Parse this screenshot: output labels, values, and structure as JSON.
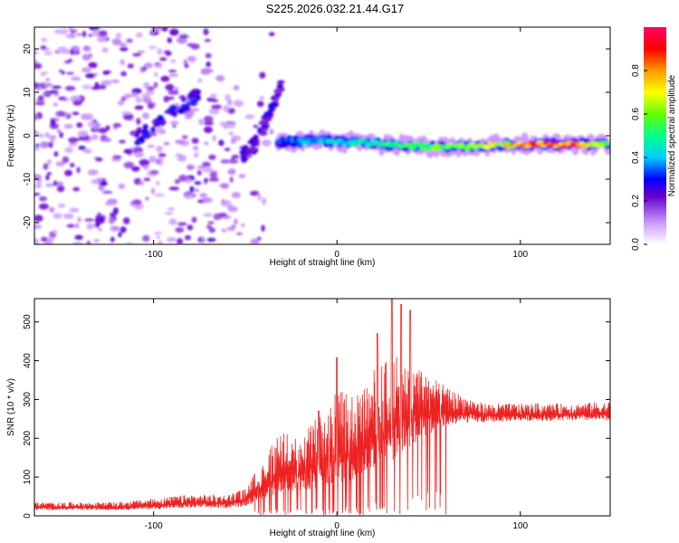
{
  "title": "S225.2026.032.21.44.G17",
  "colors": {
    "line": "#ee2222",
    "axis": "#000000",
    "background": "#ffffff"
  },
  "chart_data": [
    {
      "type": "heatmap",
      "xlabel": "Height of straight line (km)",
      "ylabel": "Frequency (Hz)",
      "xlim": [
        -165,
        149
      ],
      "ylim": [
        -25,
        25
      ],
      "xticks": [
        -100,
        0,
        100
      ],
      "yticks": [
        -20,
        -10,
        0,
        10,
        20
      ],
      "colorbar": {
        "label": "Normalized spectral amplitude",
        "range": [
          0,
          1
        ],
        "ticks": [
          0.0,
          0.2,
          0.4,
          0.6,
          0.8
        ]
      },
      "features": [
        {
          "name": "noise-region",
          "x_range": [
            -165,
            -50
          ],
          "freq_range": [
            -25,
            25
          ],
          "amplitude": 0.1
        },
        {
          "name": "ascending-trace",
          "x": [
            -110,
            -100,
            -90,
            -80,
            -75
          ],
          "freq": [
            -1,
            2,
            5,
            8,
            10
          ],
          "amplitude": 0.3
        },
        {
          "name": "transition-trace",
          "x": [
            -52,
            -45,
            -40,
            -35,
            -30
          ],
          "freq": [
            -5,
            -2,
            2,
            7,
            12
          ],
          "amplitude": 0.25
        },
        {
          "name": "main-signal",
          "x": [
            -30,
            -10,
            10,
            30,
            50,
            70,
            90,
            110,
            130,
            148
          ],
          "freq": [
            -1.5,
            -1,
            -1.5,
            -2,
            -2.5,
            -2.5,
            -2,
            -2,
            -2,
            -2
          ],
          "amplitude": [
            0.35,
            0.45,
            0.5,
            0.55,
            0.6,
            0.65,
            0.75,
            0.95,
            0.95,
            0.6
          ]
        }
      ]
    },
    {
      "type": "line",
      "xlabel": "Height of straight line (km)",
      "ylabel": "SNR (10 * v/v)",
      "xlim": [
        -165,
        149
      ],
      "ylim": [
        0,
        560
      ],
      "xticks": [
        -100,
        0,
        100
      ],
      "yticks": [
        0,
        100,
        200,
        300,
        400,
        500
      ],
      "envelope": {
        "x": [
          -165,
          -120,
          -100,
          -80,
          -60,
          -50,
          -40,
          -30,
          -20,
          -10,
          0,
          10,
          20,
          30,
          40,
          50,
          60,
          70,
          80,
          100,
          120,
          149
        ],
        "base": [
          15,
          15,
          17,
          20,
          20,
          25,
          45,
          60,
          60,
          70,
          80,
          90,
          120,
          140,
          180,
          210,
          230,
          240,
          240,
          245,
          245,
          245
        ],
        "peak": [
          35,
          35,
          45,
          55,
          55,
          70,
          150,
          220,
          200,
          260,
          330,
          320,
          380,
          430,
          400,
          370,
          330,
          310,
          290,
          290,
          290,
          295
        ]
      },
      "spikes": [
        {
          "x": 0,
          "y": 408
        },
        {
          "x": 22,
          "y": 470
        },
        {
          "x": 30,
          "y": 562
        },
        {
          "x": 35,
          "y": 545
        },
        {
          "x": 40,
          "y": 530
        },
        {
          "x": -10,
          "y": 270
        }
      ]
    }
  ]
}
